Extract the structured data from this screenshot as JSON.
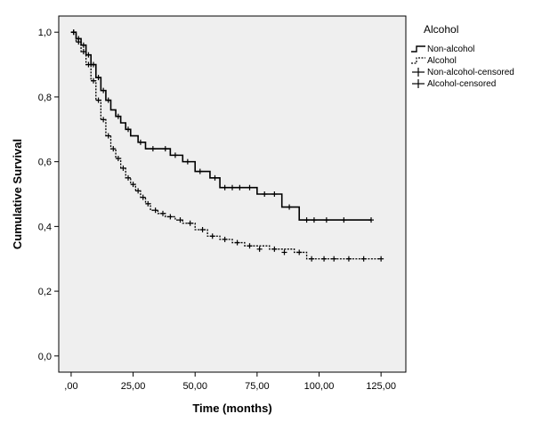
{
  "chart_data": {
    "type": "line",
    "xlabel": "Time (months)",
    "ylabel": "Cumulative Survival",
    "xlim": [
      -5,
      135
    ],
    "ylim": [
      -0.05,
      1.05
    ],
    "x_ticks": [
      {
        "value": 0,
        "label": ",00"
      },
      {
        "value": 25,
        "label": "25,00"
      },
      {
        "value": 50,
        "label": "50,00"
      },
      {
        "value": 75,
        "label": "75,00"
      },
      {
        "value": 100,
        "label": "100,00"
      },
      {
        "value": 125,
        "label": "125,00"
      }
    ],
    "y_ticks": [
      {
        "value": 0.0,
        "label": "0,0"
      },
      {
        "value": 0.2,
        "label": "0,2"
      },
      {
        "value": 0.4,
        "label": "0,4"
      },
      {
        "value": 0.6,
        "label": "0,6"
      },
      {
        "value": 0.8,
        "label": "0,8"
      },
      {
        "value": 1.0,
        "label": "1,0"
      }
    ],
    "grid": false,
    "background_color": "#efefef",
    "line_color": "#000000",
    "legend": {
      "title": "Alcohol",
      "placement": "outside-top-right",
      "entries": [
        {
          "label": "Non-alcohol",
          "symbol": "step-solid"
        },
        {
          "label": "Alcohol",
          "symbol": "step-dashed"
        },
        {
          "label": "Non-alcohol-censored",
          "symbol": "plus"
        },
        {
          "label": "Alcohol-censored",
          "symbol": "plus"
        }
      ]
    },
    "series": [
      {
        "name": "Non-alcohol",
        "style": "solid",
        "x": [
          0,
          2,
          4,
          6,
          8,
          10,
          12,
          14,
          16,
          18,
          20,
          22,
          24,
          27,
          30,
          35,
          40,
          45,
          50,
          56,
          60,
          70,
          75,
          85,
          92,
          100,
          121
        ],
        "y": [
          1.0,
          0.98,
          0.96,
          0.93,
          0.9,
          0.86,
          0.82,
          0.79,
          0.76,
          0.74,
          0.72,
          0.7,
          0.68,
          0.66,
          0.64,
          0.64,
          0.62,
          0.6,
          0.57,
          0.55,
          0.52,
          0.52,
          0.5,
          0.46,
          0.42,
          0.42,
          0.42
        ],
        "censored": [
          {
            "x": 1,
            "y": 1.0
          },
          {
            "x": 3,
            "y": 0.98
          },
          {
            "x": 5,
            "y": 0.96
          },
          {
            "x": 7,
            "y": 0.93
          },
          {
            "x": 9,
            "y": 0.9
          },
          {
            "x": 11,
            "y": 0.86
          },
          {
            "x": 13,
            "y": 0.82
          },
          {
            "x": 15,
            "y": 0.79
          },
          {
            "x": 19,
            "y": 0.74
          },
          {
            "x": 23,
            "y": 0.7
          },
          {
            "x": 28,
            "y": 0.66
          },
          {
            "x": 33,
            "y": 0.64
          },
          {
            "x": 38,
            "y": 0.64
          },
          {
            "x": 42,
            "y": 0.62
          },
          {
            "x": 47,
            "y": 0.6
          },
          {
            "x": 52,
            "y": 0.57
          },
          {
            "x": 58,
            "y": 0.55
          },
          {
            "x": 62,
            "y": 0.52
          },
          {
            "x": 65,
            "y": 0.52
          },
          {
            "x": 68,
            "y": 0.52
          },
          {
            "x": 72,
            "y": 0.52
          },
          {
            "x": 78,
            "y": 0.5
          },
          {
            "x": 82,
            "y": 0.5
          },
          {
            "x": 88,
            "y": 0.46
          },
          {
            "x": 95,
            "y": 0.42
          },
          {
            "x": 98,
            "y": 0.42
          },
          {
            "x": 103,
            "y": 0.42
          },
          {
            "x": 110,
            "y": 0.42
          },
          {
            "x": 121,
            "y": 0.42
          }
        ]
      },
      {
        "name": "Alcohol",
        "style": "dashed",
        "x": [
          0,
          2,
          4,
          6,
          8,
          10,
          12,
          14,
          16,
          18,
          20,
          22,
          24,
          26,
          28,
          30,
          32,
          35,
          38,
          42,
          45,
          50,
          55,
          60,
          65,
          70,
          80,
          90,
          95,
          100,
          110,
          125
        ],
        "y": [
          1.0,
          0.97,
          0.94,
          0.9,
          0.85,
          0.79,
          0.73,
          0.68,
          0.64,
          0.61,
          0.58,
          0.55,
          0.53,
          0.51,
          0.49,
          0.47,
          0.45,
          0.44,
          0.43,
          0.42,
          0.41,
          0.39,
          0.37,
          0.36,
          0.35,
          0.34,
          0.33,
          0.32,
          0.3,
          0.3,
          0.3,
          0.3
        ],
        "censored": [
          {
            "x": 1,
            "y": 1.0
          },
          {
            "x": 3,
            "y": 0.97
          },
          {
            "x": 5,
            "y": 0.94
          },
          {
            "x": 7,
            "y": 0.9
          },
          {
            "x": 9,
            "y": 0.85
          },
          {
            "x": 11,
            "y": 0.79
          },
          {
            "x": 13,
            "y": 0.73
          },
          {
            "x": 15,
            "y": 0.68
          },
          {
            "x": 17,
            "y": 0.64
          },
          {
            "x": 19,
            "y": 0.61
          },
          {
            "x": 21,
            "y": 0.58
          },
          {
            "x": 23,
            "y": 0.55
          },
          {
            "x": 25,
            "y": 0.53
          },
          {
            "x": 27,
            "y": 0.51
          },
          {
            "x": 29,
            "y": 0.49
          },
          {
            "x": 31,
            "y": 0.47
          },
          {
            "x": 34,
            "y": 0.45
          },
          {
            "x": 37,
            "y": 0.44
          },
          {
            "x": 40,
            "y": 0.43
          },
          {
            "x": 44,
            "y": 0.42
          },
          {
            "x": 48,
            "y": 0.41
          },
          {
            "x": 53,
            "y": 0.39
          },
          {
            "x": 57,
            "y": 0.37
          },
          {
            "x": 62,
            "y": 0.36
          },
          {
            "x": 67,
            "y": 0.35
          },
          {
            "x": 72,
            "y": 0.34
          },
          {
            "x": 76,
            "y": 0.33
          },
          {
            "x": 82,
            "y": 0.33
          },
          {
            "x": 86,
            "y": 0.32
          },
          {
            "x": 92,
            "y": 0.32
          },
          {
            "x": 97,
            "y": 0.3
          },
          {
            "x": 102,
            "y": 0.3
          },
          {
            "x": 106,
            "y": 0.3
          },
          {
            "x": 112,
            "y": 0.3
          },
          {
            "x": 118,
            "y": 0.3
          },
          {
            "x": 125,
            "y": 0.3
          }
        ]
      }
    ]
  }
}
